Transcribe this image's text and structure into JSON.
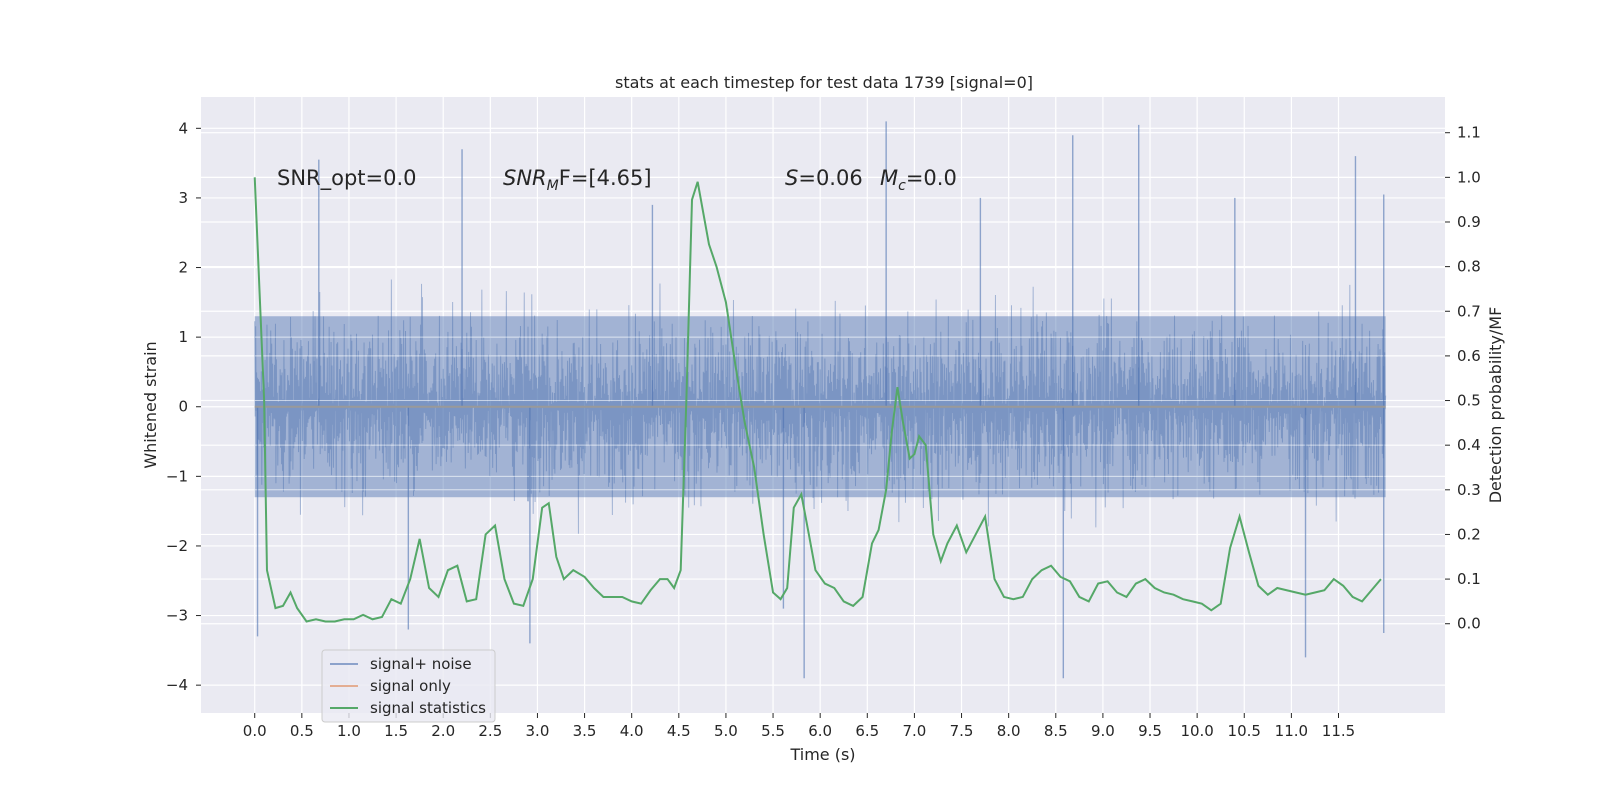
{
  "chart_data": {
    "type": "line",
    "title": "stats at each timestep for test data 1739 [signal=0]",
    "xlabel": "Time (s)",
    "ylabel_left": "Whitened strain",
    "ylabel_right": "Detection probability/MF",
    "xlim": [
      -0.57,
      12.63
    ],
    "ylim_left": [
      -4.4,
      4.45
    ],
    "ylim_right": [
      -0.2,
      1.18
    ],
    "xticks": [
      0.0,
      0.5,
      1.0,
      1.5,
      2.0,
      2.5,
      3.0,
      3.5,
      4.0,
      4.5,
      5.0,
      5.5,
      6.0,
      6.5,
      7.0,
      7.5,
      8.0,
      8.5,
      9.0,
      9.5,
      10.0,
      10.5,
      11.0,
      11.5
    ],
    "xtick_labels": [
      "0.0",
      "0.5",
      "1.0",
      "1.5",
      "2.0",
      "2.5",
      "3.0",
      "3.5",
      "4.0",
      "4.5",
      "5.0",
      "5.5",
      "6.0",
      "6.5",
      "7.0",
      "7.5",
      "8.0",
      "8.5",
      "9.0",
      "9.5",
      "10.0",
      "10.5",
      "11.0",
      "11.5"
    ],
    "yticks_left": [
      4,
      3,
      2,
      1,
      0,
      -1,
      -2,
      -3,
      -4
    ],
    "ytick_labels_left": [
      "4",
      "3",
      "2",
      "1",
      "0",
      "−1",
      "−2",
      "−3",
      "−4"
    ],
    "yticks_right": [
      1.1,
      1.0,
      0.9,
      0.8,
      0.7,
      0.6,
      0.5,
      0.4,
      0.3,
      0.2,
      0.1,
      0.0
    ],
    "ytick_labels_right": [
      "1.1",
      "1.0",
      "0.9",
      "0.8",
      "0.7",
      "0.6",
      "0.5",
      "0.4",
      "0.3",
      "0.2",
      "0.1",
      "0.0"
    ],
    "grid": true,
    "legend_position": "lower-left",
    "annotations": {
      "snr_opt": "SNR_opt=0.0",
      "snr_mf_sym": "SNR",
      "snr_mf_sub": "M",
      "snr_mf_rest": "F=[4.65]",
      "s_sym": "S",
      "s_rest": "=0.06",
      "mc_sym": "M",
      "mc_sub": "c",
      "mc_rest": "=0.0"
    },
    "series": [
      {
        "name": "signal+ noise",
        "axis": "left",
        "color": "#4c72b0",
        "style": "dense noise",
        "x_range": [
          0.0,
          12.0
        ],
        "core_band": [
          -1.3,
          1.3
        ],
        "typical_extent": [
          -2.6,
          2.6
        ],
        "spikes": [
          {
            "x": 0.03,
            "y": -3.3
          },
          {
            "x": 0.68,
            "y": 3.55
          },
          {
            "x": 2.2,
            "y": 3.7
          },
          {
            "x": 2.92,
            "y": -3.4
          },
          {
            "x": 5.83,
            "y": -3.9
          },
          {
            "x": 6.7,
            "y": 4.1
          },
          {
            "x": 8.58,
            "y": -3.9
          },
          {
            "x": 8.68,
            "y": 3.9
          },
          {
            "x": 9.38,
            "y": 4.05
          },
          {
            "x": 11.15,
            "y": -3.6
          },
          {
            "x": 11.68,
            "y": 3.6
          },
          {
            "x": 11.98,
            "y": 3.05
          },
          {
            "x": 11.98,
            "y": -3.25
          },
          {
            "x": 5.61,
            "y": -2.9
          },
          {
            "x": 1.63,
            "y": -3.2
          },
          {
            "x": 4.22,
            "y": 2.9
          },
          {
            "x": 7.7,
            "y": 3.0
          },
          {
            "x": 10.4,
            "y": 3.0
          }
        ]
      },
      {
        "name": "signal only",
        "axis": "left",
        "color": "#dd8452",
        "x": [
          0.0,
          12.0
        ],
        "y": [
          0.0,
          0.0
        ]
      },
      {
        "name": "signal statistics",
        "axis": "right",
        "color": "#55a868",
        "x": [
          0.0,
          0.1,
          0.13,
          0.22,
          0.3,
          0.38,
          0.45,
          0.55,
          0.65,
          0.75,
          0.85,
          0.95,
          1.05,
          1.15,
          1.25,
          1.35,
          1.45,
          1.55,
          1.65,
          1.75,
          1.85,
          1.95,
          2.05,
          2.15,
          2.25,
          2.35,
          2.45,
          2.55,
          2.65,
          2.75,
          2.85,
          2.95,
          3.05,
          3.12,
          3.2,
          3.28,
          3.38,
          3.5,
          3.6,
          3.7,
          3.8,
          3.9,
          4.0,
          4.1,
          4.2,
          4.3,
          4.38,
          4.45,
          4.52,
          4.58,
          4.64,
          4.7,
          4.76,
          4.82,
          4.9,
          5.0,
          5.1,
          5.2,
          5.3,
          5.4,
          5.5,
          5.58,
          5.65,
          5.72,
          5.8,
          5.88,
          5.95,
          6.05,
          6.15,
          6.25,
          6.35,
          6.45,
          6.55,
          6.62,
          6.7,
          6.76,
          6.82,
          6.88,
          6.95,
          7.0,
          7.05,
          7.12,
          7.2,
          7.28,
          7.35,
          7.45,
          7.55,
          7.65,
          7.75,
          7.85,
          7.95,
          8.05,
          8.15,
          8.25,
          8.35,
          8.45,
          8.55,
          8.65,
          8.75,
          8.85,
          8.95,
          9.05,
          9.15,
          9.25,
          9.35,
          9.45,
          9.55,
          9.65,
          9.75,
          9.85,
          9.95,
          10.05,
          10.15,
          10.25,
          10.35,
          10.45,
          10.55,
          10.65,
          10.75,
          10.85,
          10.95,
          11.05,
          11.15,
          11.25,
          11.35,
          11.45,
          11.55,
          11.65,
          11.75,
          11.85,
          11.95
        ],
        "y": [
          1.0,
          0.5,
          0.12,
          0.035,
          0.04,
          0.07,
          0.035,
          0.005,
          0.01,
          0.005,
          0.005,
          0.01,
          0.01,
          0.02,
          0.01,
          0.015,
          0.055,
          0.045,
          0.1,
          0.19,
          0.08,
          0.06,
          0.12,
          0.13,
          0.05,
          0.055,
          0.2,
          0.22,
          0.1,
          0.045,
          0.04,
          0.1,
          0.26,
          0.27,
          0.15,
          0.1,
          0.12,
          0.105,
          0.08,
          0.06,
          0.06,
          0.06,
          0.05,
          0.045,
          0.075,
          0.1,
          0.1,
          0.08,
          0.12,
          0.5,
          0.95,
          0.99,
          0.92,
          0.85,
          0.8,
          0.72,
          0.58,
          0.45,
          0.35,
          0.2,
          0.07,
          0.055,
          0.08,
          0.26,
          0.29,
          0.2,
          0.12,
          0.09,
          0.08,
          0.05,
          0.04,
          0.06,
          0.18,
          0.21,
          0.3,
          0.43,
          0.53,
          0.45,
          0.37,
          0.38,
          0.42,
          0.4,
          0.2,
          0.14,
          0.18,
          0.22,
          0.16,
          0.2,
          0.24,
          0.1,
          0.06,
          0.055,
          0.06,
          0.1,
          0.12,
          0.13,
          0.105,
          0.095,
          0.06,
          0.05,
          0.09,
          0.095,
          0.07,
          0.06,
          0.09,
          0.1,
          0.08,
          0.07,
          0.065,
          0.055,
          0.05,
          0.045,
          0.03,
          0.045,
          0.17,
          0.24,
          0.16,
          0.085,
          0.065,
          0.08,
          0.075,
          0.07,
          0.065,
          0.07,
          0.075,
          0.1,
          0.085,
          0.06,
          0.05,
          0.075,
          0.1
        ]
      }
    ]
  }
}
